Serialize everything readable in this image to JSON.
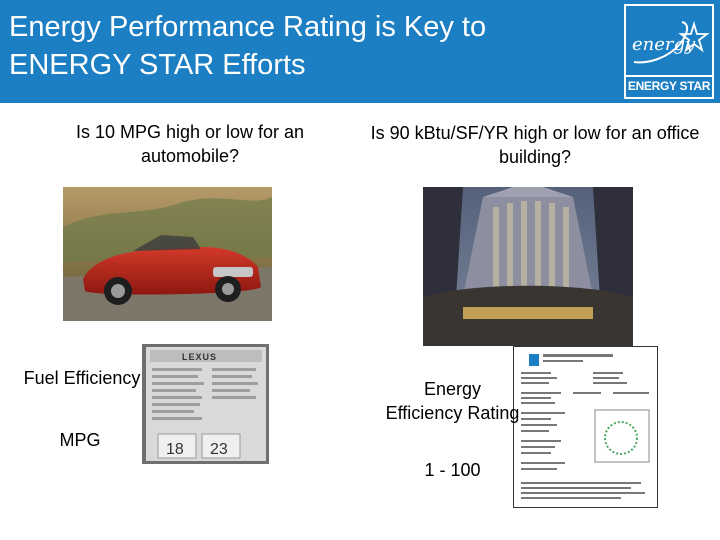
{
  "header": {
    "title_line1": "Energy Performance Rating is Key to",
    "title_line2": "ENERGY STAR Efforts",
    "background": "#1d7fc3"
  },
  "logo": {
    "script_text": "energy",
    "label": "ENERGY STAR",
    "icon": "energy-star-logo-icon"
  },
  "left": {
    "question": "Is 10 MPG high or low for an automobile?",
    "metric_label": "Fuel Efficiency",
    "metric_unit": "MPG",
    "sticker_brand": "LEXUS",
    "sticker_city": "18",
    "sticker_hwy": "23"
  },
  "right": {
    "question": "Is 90 kBtu/SF/YR high or low for an office building?",
    "metric_label": "Energy Efficiency Rating",
    "metric_range": "1 - 100"
  }
}
